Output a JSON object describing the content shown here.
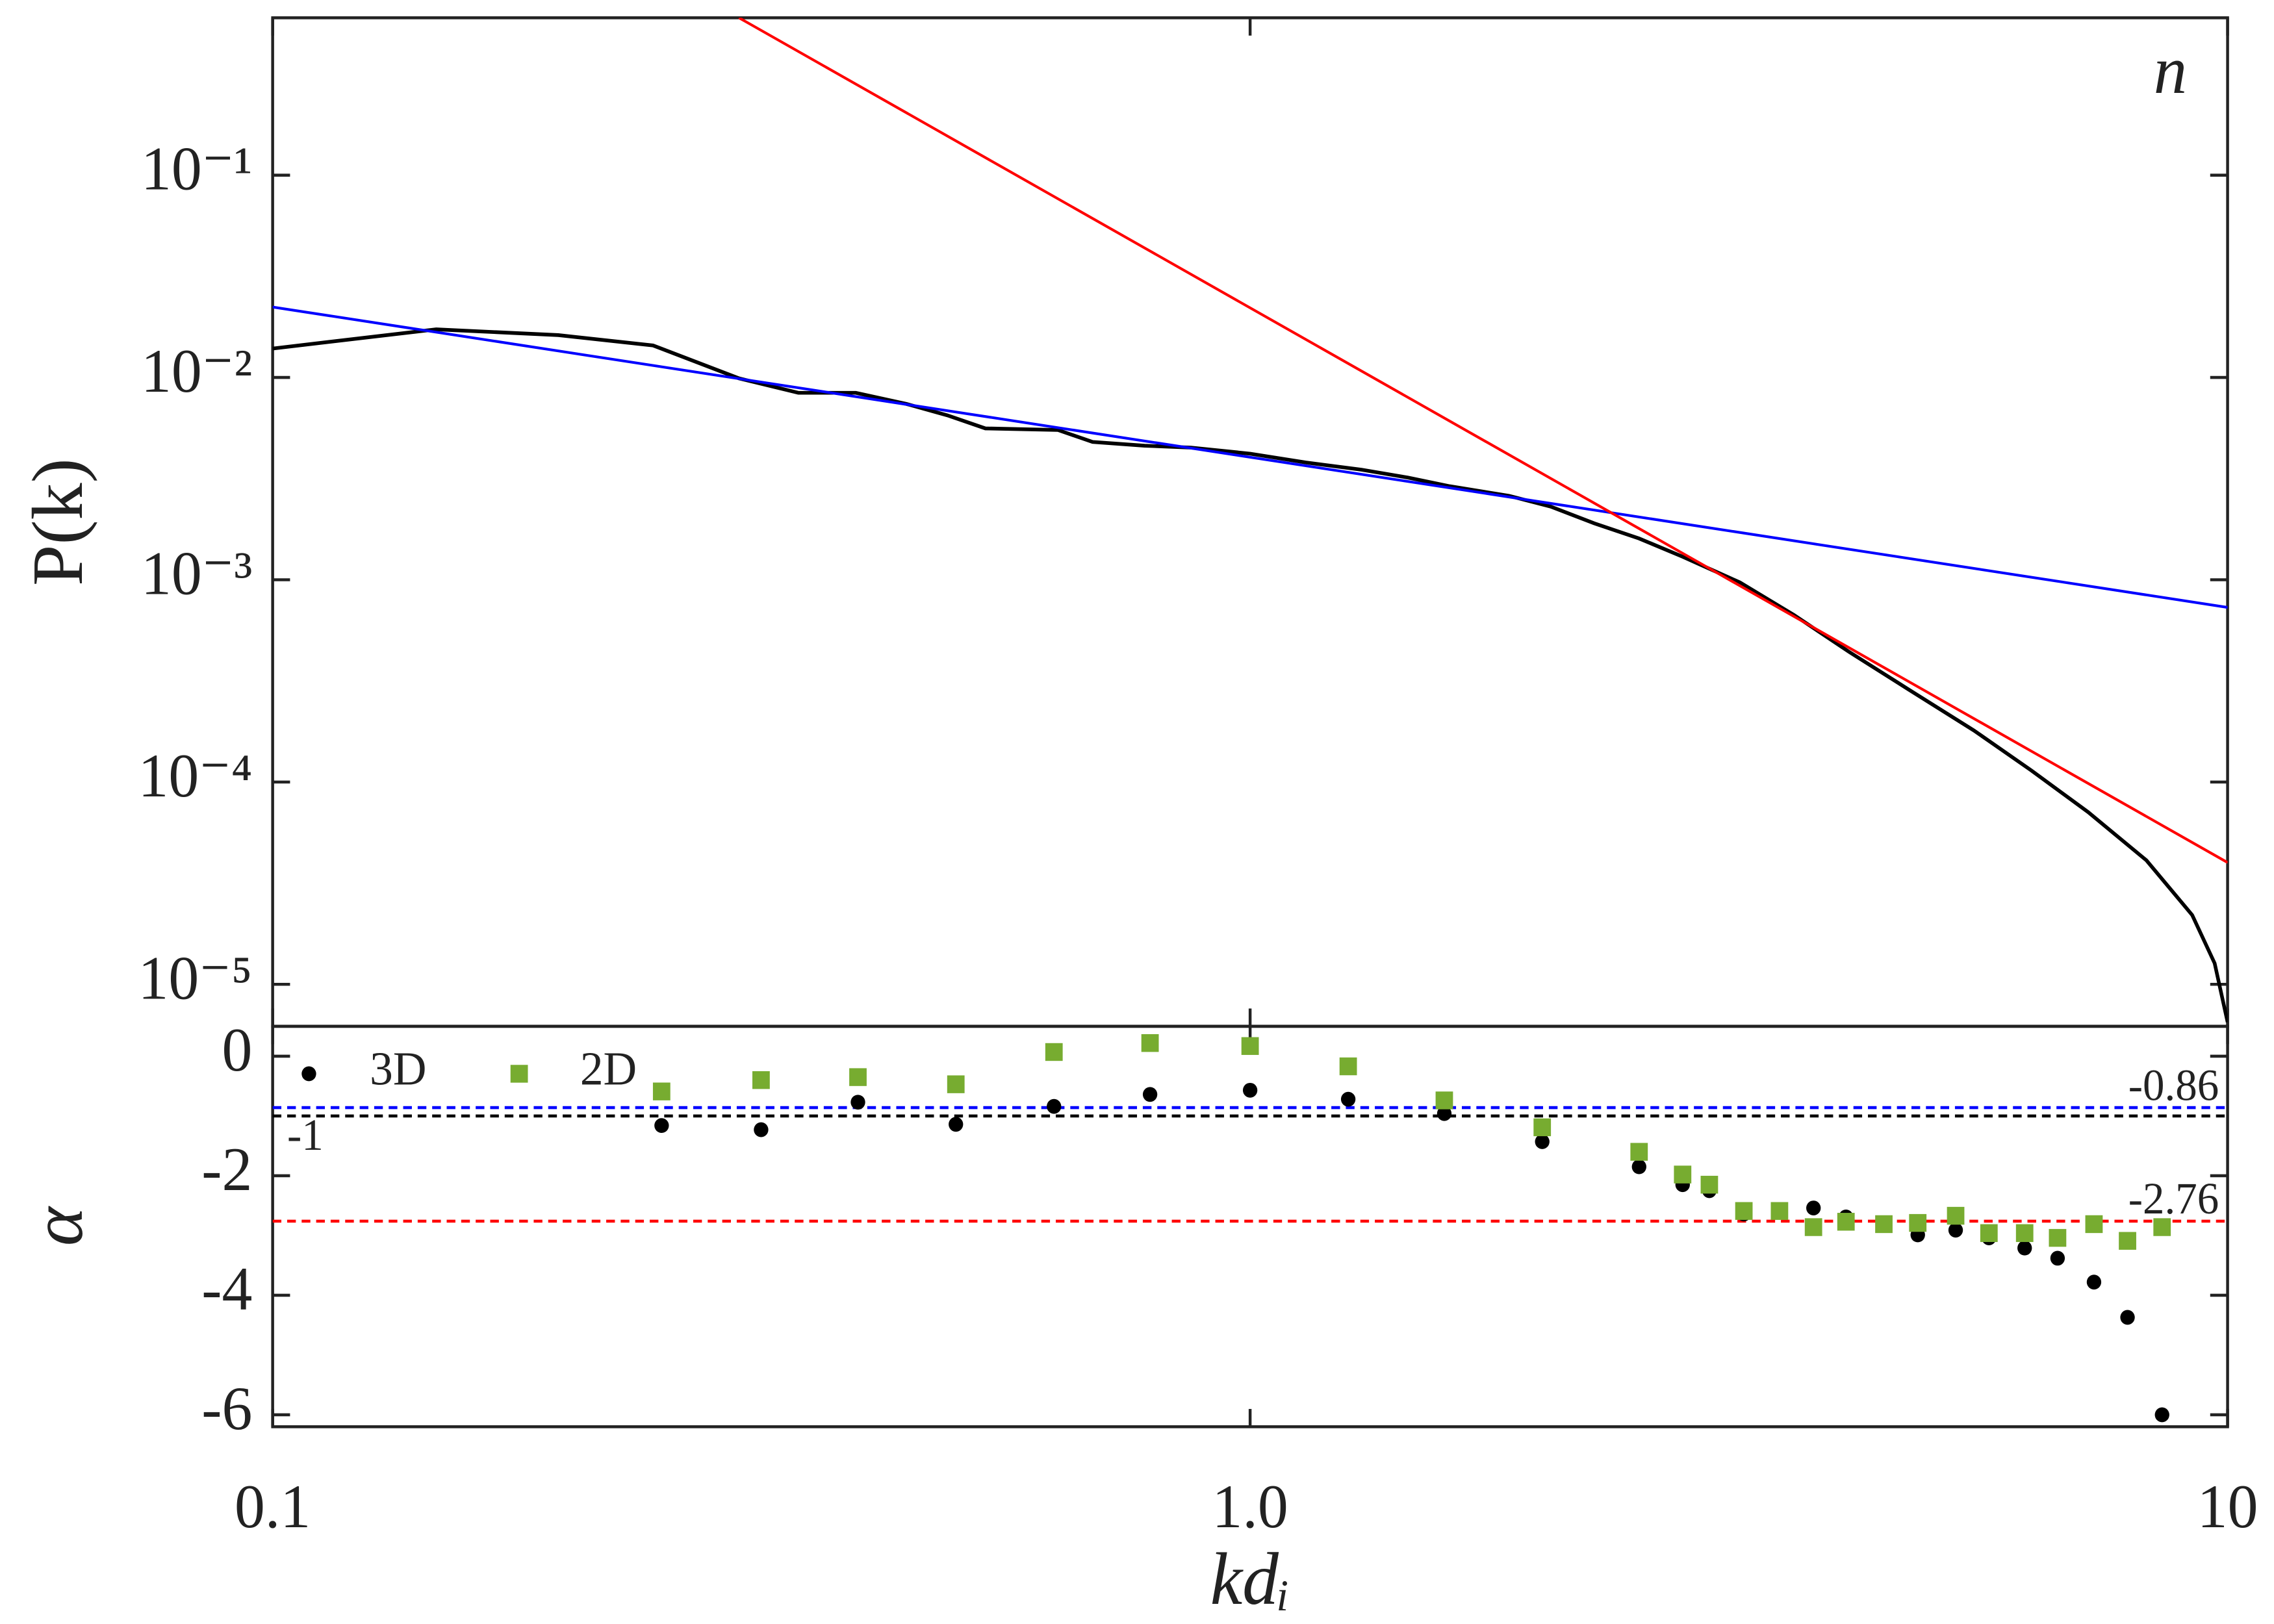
{
  "chart_data": [
    {
      "type": "line",
      "x_scale": "log",
      "y_scale": "log",
      "ylabel": "P(k)",
      "annotation": "n",
      "xlim": [
        0.1,
        10
      ],
      "ylim": [
        6.2e-06,
        0.6
      ],
      "yticks": [
        {
          "value": 0.1,
          "label": "10⁻¹"
        },
        {
          "value": 0.01,
          "label": "10⁻²"
        },
        {
          "value": 0.001,
          "label": "10⁻³"
        },
        {
          "value": 0.0001,
          "label": "10⁻⁴"
        },
        {
          "value": 1e-05,
          "label": "10⁻⁵"
        }
      ],
      "series": [
        {
          "color": "#000000",
          "x": [
            0.1,
            0.147,
            0.196,
            0.245,
            0.3,
            0.345,
            0.395,
            0.445,
            0.49,
            0.536,
            0.636,
            0.69,
            0.78,
            0.87,
            1.0,
            1.14,
            1.3,
            1.45,
            1.6,
            1.84,
            2.03,
            2.25,
            2.5,
            2.77,
            3.17,
            3.6,
            4.1,
            4.7,
            5.5,
            6.3,
            7.2,
            8.26,
            9.2,
            9.7,
            10
          ],
          "values": [
            0.0139,
            0.0173,
            0.0162,
            0.0144,
            0.0099,
            0.0084,
            0.0084,
            0.0074,
            0.0065,
            0.0056,
            0.0055,
            0.0048,
            0.0046,
            0.0045,
            0.0042,
            0.0038,
            0.0035,
            0.0032,
            0.0029,
            0.0026,
            0.0023,
            0.0019,
            0.0016,
            0.0013,
            0.00097,
            0.00067,
            0.00044,
            0.00029,
            0.00018,
            0.000114,
            7.1e-05,
            4.1e-05,
            2.2e-05,
            1.27e-05,
            6.5e-06
          ]
        },
        {
          "color": "#0000ff",
          "x": [
            0.1,
            10
          ],
          "values": [
            0.0223,
            0.00073
          ]
        },
        {
          "color": "#ff0000",
          "x": [
            0.3,
            10
          ],
          "values": [
            0.6,
            4e-05
          ]
        }
      ]
    },
    {
      "type": "scatter",
      "x_scale": "log",
      "ylabel": "α",
      "xlabel": "kdᵢ",
      "legend": "upper left",
      "xlim": [
        0.1,
        10
      ],
      "ylim": [
        -6.2,
        0.5
      ],
      "xticks": [
        0.1,
        {
          "value": 1,
          "label": "1.0"
        },
        10
      ],
      "yticks": [
        0,
        -2,
        -4,
        -6
      ],
      "hlines": [
        {
          "value": -0.86,
          "color": "#0000ff",
          "label": "-0.86"
        },
        {
          "value": -1,
          "color": "#000000",
          "label": "-1"
        },
        {
          "value": -2.76,
          "color": "#ff0000",
          "label": "-2.76"
        }
      ],
      "x": [
        0.25,
        0.316,
        0.397,
        0.5,
        0.63,
        0.79,
        1.0,
        1.26,
        1.58,
        1.99,
        2.5,
        2.77,
        2.95,
        3.2,
        3.48,
        3.77,
        4.07,
        4.45,
        4.82,
        5.27,
        5.7,
        6.2,
        6.7,
        7.3,
        7.9,
        8.57
      ],
      "series": [
        {
          "name": "3D",
          "color": "#000000",
          "marker": "circle",
          "values": [
            -1.16,
            -1.23,
            -0.77,
            -1.14,
            -0.84,
            -0.64,
            -0.57,
            -0.72,
            -0.96,
            -1.43,
            -1.85,
            -2.15,
            -2.25,
            -2.64,
            -2.57,
            -2.54,
            -2.69,
            -2.81,
            -2.99,
            -2.91,
            -3.04,
            -3.21,
            -3.38,
            -3.78,
            -4.37,
            -6.0
          ]
        },
        {
          "name": "2D",
          "color": "#77ac30",
          "marker": "square",
          "values": [
            -0.59,
            -0.4,
            -0.35,
            -0.47,
            0.07,
            0.22,
            0.17,
            -0.17,
            -0.74,
            -1.19,
            -1.6,
            -1.98,
            -2.15,
            -2.59,
            -2.59,
            -2.86,
            -2.77,
            -2.81,
            -2.79,
            -2.67,
            -2.96,
            -2.96,
            -3.04,
            -2.81,
            -3.09,
            -2.86
          ]
        }
      ]
    }
  ]
}
